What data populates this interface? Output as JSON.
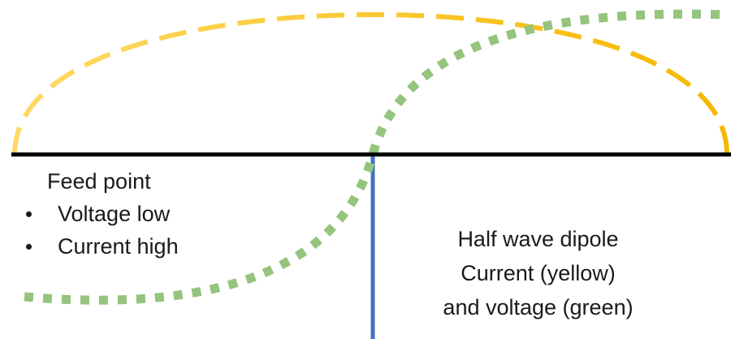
{
  "feed_point": {
    "title": "Feed point",
    "bullets": [
      "Voltage low",
      "Current high"
    ]
  },
  "caption": {
    "line1": "Half wave dipole",
    "line2": "Current (yellow)",
    "line3": "and voltage (green)"
  },
  "colors": {
    "antenna": "#000000",
    "feed_line": "#4472c4",
    "current": "#f5b800",
    "voltage": "#94c47d"
  }
}
